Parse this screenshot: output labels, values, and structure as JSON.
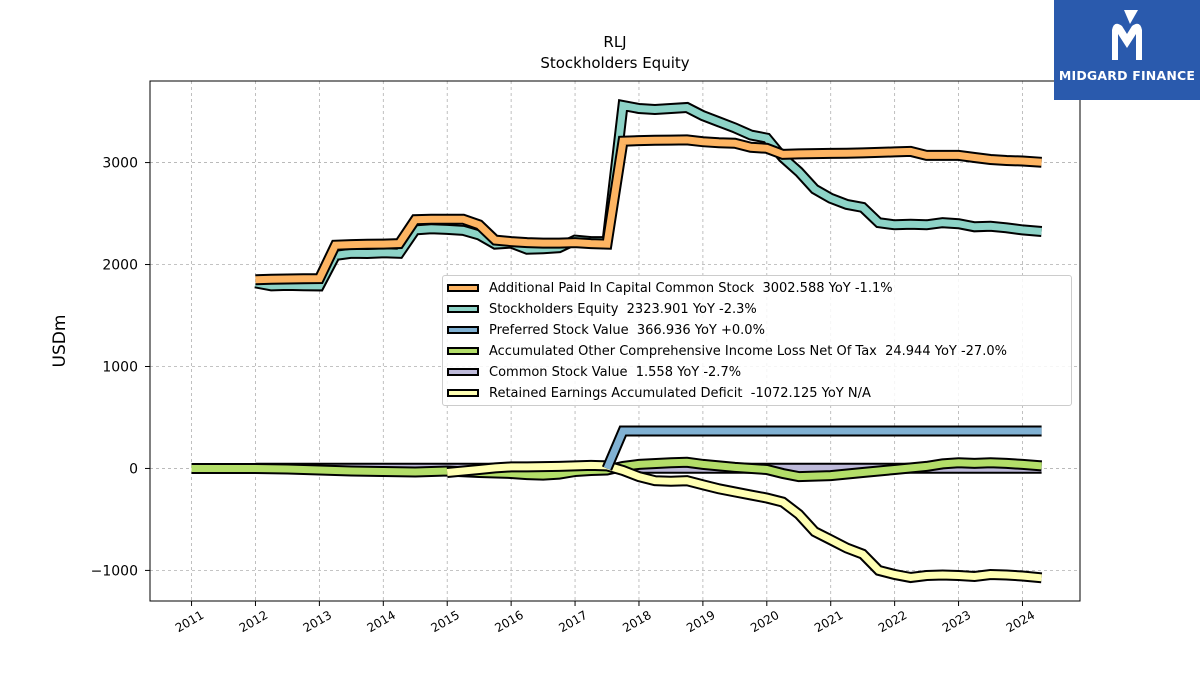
{
  "brand": {
    "name": "MIDGARD FINANCE",
    "logo_icon": "midgard-m-icon",
    "color": "#2a5aad"
  },
  "chart_data": {
    "type": "area",
    "title": "RLJ",
    "subtitle": "Stockholders  Equity",
    "xlabel": "",
    "ylabel": "USDm",
    "ylim": [
      -1300,
      3800
    ],
    "xlim": [
      2010.35,
      2024.9
    ],
    "yticks": [
      -1000,
      0,
      1000,
      2000,
      3000
    ],
    "ytick_labels": [
      "−1000",
      "0",
      "1000",
      "2000",
      "3000"
    ],
    "xticks": [
      "2011",
      "2012",
      "2013",
      "2014",
      "2015",
      "2016",
      "2017",
      "2018",
      "2019",
      "2020",
      "2021",
      "2022",
      "2023",
      "2024"
    ],
    "grid": true,
    "legend_position": "center-right",
    "series": [
      {
        "name": "Additional Paid In Capital Common Stock",
        "legend": "Additional Paid In Capital Common Stock  3002.588 YoY -1.1%",
        "color": "#fdb462",
        "x": [
          2012.0,
          2012.25,
          2012.5,
          2012.75,
          2013.0,
          2013.25,
          2013.5,
          2013.75,
          2014.0,
          2014.25,
          2014.5,
          2014.75,
          2015.0,
          2015.25,
          2015.5,
          2015.75,
          2016.0,
          2016.25,
          2016.5,
          2016.75,
          2017.0,
          2017.25,
          2017.5,
          2017.75,
          2018.0,
          2018.25,
          2018.5,
          2018.75,
          2019.0,
          2019.25,
          2019.5,
          2019.75,
          2020.0,
          2020.25,
          2020.5,
          2020.75,
          2021.0,
          2021.25,
          2021.5,
          2021.75,
          2022.0,
          2022.25,
          2022.5,
          2022.75,
          2023.0,
          2023.25,
          2023.5,
          2023.75,
          2024.0,
          2024.3
        ],
        "values": [
          1850,
          1855,
          1858,
          1860,
          1862,
          2190,
          2195,
          2198,
          2200,
          2205,
          2440,
          2445,
          2445,
          2445,
          2390,
          2240,
          2225,
          2215,
          2210,
          2210,
          2215,
          2205,
          2200,
          3210,
          3215,
          3218,
          3220,
          3222,
          3205,
          3195,
          3190,
          3150,
          3140,
          3080,
          3085,
          3088,
          3090,
          3092,
          3095,
          3100,
          3105,
          3110,
          3070,
          3070,
          3070,
          3050,
          3030,
          3020,
          3015,
          3002.588
        ]
      },
      {
        "name": "Stockholders Equity",
        "legend": "Stockholders Equity  2323.901 YoY -2.3%",
        "color": "#8dd3c7",
        "x": [
          2012.0,
          2012.25,
          2012.5,
          2012.75,
          2013.0,
          2013.25,
          2013.5,
          2013.75,
          2014.0,
          2014.25,
          2014.5,
          2014.75,
          2015.0,
          2015.25,
          2015.5,
          2015.75,
          2016.0,
          2016.25,
          2016.5,
          2016.75,
          2017.0,
          2017.25,
          2017.5,
          2017.75,
          2018.0,
          2018.25,
          2018.5,
          2018.75,
          2019.0,
          2019.25,
          2019.5,
          2019.75,
          2020.0,
          2020.25,
          2020.5,
          2020.75,
          2021.0,
          2021.25,
          2021.5,
          2021.75,
          2022.0,
          2022.25,
          2022.5,
          2022.75,
          2023.0,
          2023.25,
          2023.5,
          2023.75,
          2024.0,
          2024.3
        ],
        "values": [
          1820,
          1790,
          1795,
          1792,
          1790,
          2090,
          2110,
          2108,
          2115,
          2110,
          2340,
          2350,
          2345,
          2335,
          2290,
          2200,
          2210,
          2150,
          2155,
          2165,
          2240,
          2225,
          2225,
          3560,
          3530,
          3520,
          3530,
          3540,
          3460,
          3400,
          3340,
          3270,
          3240,
          3050,
          2910,
          2740,
          2650,
          2590,
          2560,
          2410,
          2390,
          2395,
          2390,
          2410,
          2400,
          2370,
          2375,
          2360,
          2340,
          2323.901
        ]
      },
      {
        "name": "Preferred Stock Value",
        "legend": "Preferred Stock Value  366.936 YoY +0.0%",
        "color": "#80b1d3",
        "x": [
          2017.5,
          2017.75,
          2018.0,
          2018.5,
          2019.0,
          2019.5,
          2020.0,
          2020.5,
          2021.0,
          2021.5,
          2022.0,
          2022.5,
          2023.0,
          2023.5,
          2024.0,
          2024.3
        ],
        "values": [
          0,
          366.936,
          366.936,
          366.936,
          366.936,
          366.936,
          366.936,
          366.936,
          366.936,
          366.936,
          366.936,
          366.936,
          366.936,
          366.936,
          366.936,
          366.936
        ]
      },
      {
        "name": "Accumulated Other Comprehensive Income Loss Net Of Tax",
        "legend": "Accumulated Other Comprehensive Income Loss Net Of Tax  24.944 YoY -27.0%",
        "color": "#b3de69",
        "x": [
          2011.0,
          2011.5,
          2012.0,
          2012.5,
          2013.0,
          2013.5,
          2014.0,
          2014.5,
          2015.0,
          2015.5,
          2016.0,
          2016.25,
          2016.5,
          2016.75,
          2017.0,
          2017.25,
          2017.5,
          2017.75,
          2018.0,
          2018.5,
          2018.75,
          2019.0,
          2019.5,
          2020.0,
          2020.25,
          2020.5,
          2020.75,
          2021.0,
          2021.5,
          2022.0,
          2022.5,
          2022.75,
          2023.0,
          2023.25,
          2023.5,
          2023.75,
          2024.0,
          2024.3
        ],
        "values": [
          0,
          0,
          0,
          -5,
          -15,
          -25,
          -30,
          -35,
          -25,
          -40,
          -50,
          -60,
          -65,
          -55,
          -30,
          -20,
          -15,
          20,
          40,
          55,
          60,
          40,
          10,
          -10,
          -50,
          -80,
          -75,
          -70,
          -40,
          -10,
          20,
          45,
          55,
          50,
          55,
          50,
          40,
          24.944
        ]
      },
      {
        "name": "Common Stock Value",
        "legend": "Common Stock Value  1.558 YoY -2.7%",
        "color": "#bebada",
        "x": [
          2012.0,
          2013.0,
          2014.0,
          2015.0,
          2016.0,
          2017.0,
          2017.5,
          2018.0,
          2019.0,
          2020.0,
          2021.0,
          2022.0,
          2023.0,
          2024.0,
          2024.3
        ],
        "values": [
          1.25,
          1.3,
          1.32,
          1.4,
          1.38,
          1.5,
          1.72,
          1.74,
          1.72,
          1.64,
          1.66,
          1.64,
          1.6,
          1.6,
          1.558
        ]
      },
      {
        "name": "Retained Earnings Accumulated Deficit",
        "legend": "Retained Earnings Accumulated Deficit  -1072.125 YoY N/A",
        "color": "#ffffb3",
        "x": [
          2015.0,
          2015.25,
          2015.5,
          2015.75,
          2016.0,
          2016.25,
          2016.5,
          2016.75,
          2017.0,
          2017.25,
          2017.5,
          2017.75,
          2018.0,
          2018.25,
          2018.5,
          2018.75,
          2019.0,
          2019.25,
          2019.5,
          2019.75,
          2020.0,
          2020.25,
          2020.5,
          2020.75,
          2021.0,
          2021.25,
          2021.5,
          2021.75,
          2022.0,
          2022.25,
          2022.5,
          2022.75,
          2023.0,
          2023.25,
          2023.5,
          2023.75,
          2024.0,
          2024.3
        ],
        "values": [
          -40,
          -25,
          -10,
          5,
          15,
          15,
          18,
          20,
          25,
          30,
          25,
          -20,
          -80,
          -120,
          -125,
          -120,
          -160,
          -200,
          -230,
          -260,
          -290,
          -330,
          -450,
          -620,
          -700,
          -780,
          -840,
          -1000,
          -1040,
          -1070,
          -1050,
          -1045,
          -1050,
          -1060,
          -1040,
          -1045,
          -1055,
          -1072.125
        ]
      }
    ]
  }
}
